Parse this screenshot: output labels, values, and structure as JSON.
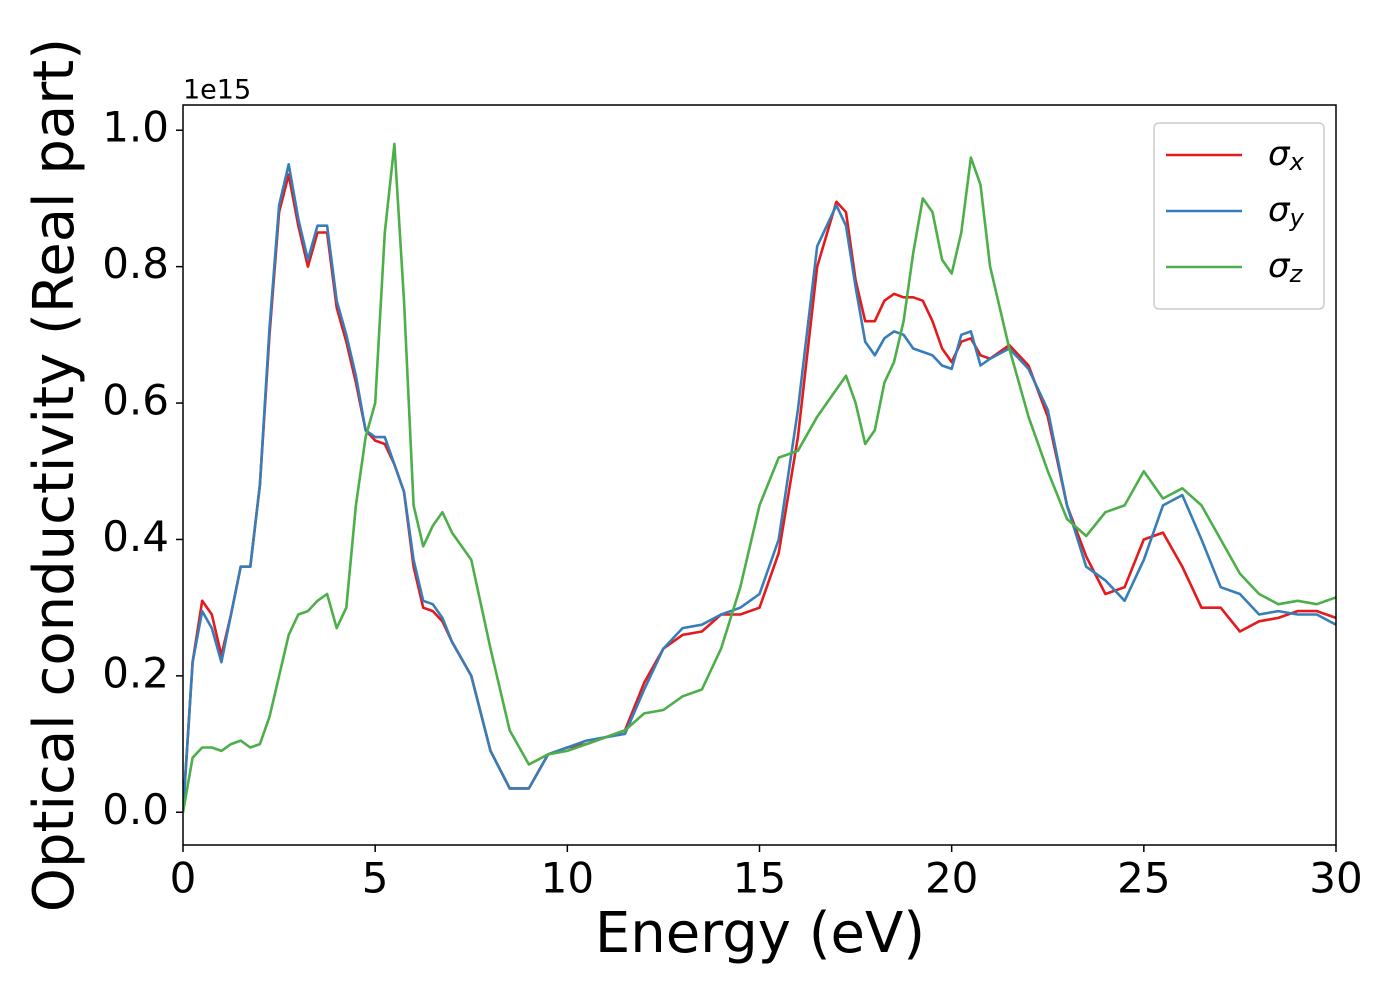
{
  "chart_data": {
    "type": "line",
    "xlabel": "Energy (eV)",
    "ylabel": "Optical conductivity (Real part)",
    "y_offset_label": "1e15",
    "x": [
      0,
      0.25,
      0.5,
      0.75,
      1,
      1.25,
      1.5,
      1.75,
      2,
      2.25,
      2.5,
      2.75,
      3,
      3.25,
      3.5,
      3.75,
      4,
      4.25,
      4.5,
      4.75,
      5,
      5.25,
      5.5,
      5.75,
      6,
      6.25,
      6.5,
      6.75,
      7,
      7.5,
      8,
      8.5,
      9,
      9.5,
      10,
      10.5,
      11,
      11.5,
      12,
      12.5,
      13,
      13.5,
      14,
      14.5,
      15,
      15.5,
      16,
      16.5,
      17,
      17.25,
      17.5,
      17.75,
      18,
      18.25,
      18.5,
      18.75,
      19,
      19.25,
      19.5,
      19.75,
      20,
      20.25,
      20.5,
      20.75,
      21,
      21.5,
      22,
      22.5,
      23,
      23.5,
      24,
      24.5,
      25,
      25.5,
      26,
      26.5,
      27,
      27.5,
      28,
      28.5,
      29,
      29.5,
      30
    ],
    "series": [
      {
        "name": "σx",
        "color": "#e41a1c",
        "values": [
          0,
          0.22,
          0.31,
          0.29,
          0.23,
          0.29,
          0.36,
          0.36,
          0.48,
          0.7,
          0.88,
          0.935,
          0.86,
          0.8,
          0.85,
          0.85,
          0.74,
          0.69,
          0.63,
          0.56,
          0.545,
          0.54,
          0.51,
          0.47,
          0.36,
          0.3,
          0.295,
          0.28,
          0.25,
          0.2,
          0.09,
          0.035,
          0.035,
          0.085,
          0.095,
          0.1,
          0.11,
          0.12,
          0.19,
          0.24,
          0.26,
          0.265,
          0.29,
          0.29,
          0.3,
          0.38,
          0.55,
          0.8,
          0.895,
          0.88,
          0.78,
          0.72,
          0.72,
          0.75,
          0.76,
          0.755,
          0.755,
          0.75,
          0.72,
          0.68,
          0.66,
          0.69,
          0.695,
          0.67,
          0.665,
          0.685,
          0.655,
          0.58,
          0.45,
          0.375,
          0.32,
          0.33,
          0.4,
          0.41,
          0.36,
          0.3,
          0.3,
          0.265,
          0.28,
          0.285,
          0.295,
          0.295,
          0.285
        ]
      },
      {
        "name": "σy",
        "color": "#377eb8",
        "values": [
          0,
          0.22,
          0.295,
          0.27,
          0.22,
          0.29,
          0.36,
          0.36,
          0.48,
          0.71,
          0.89,
          0.95,
          0.87,
          0.81,
          0.86,
          0.86,
          0.75,
          0.7,
          0.64,
          0.56,
          0.55,
          0.55,
          0.51,
          0.47,
          0.37,
          0.31,
          0.305,
          0.285,
          0.25,
          0.2,
          0.09,
          0.035,
          0.035,
          0.085,
          0.095,
          0.105,
          0.11,
          0.115,
          0.18,
          0.24,
          0.27,
          0.275,
          0.29,
          0.3,
          0.32,
          0.4,
          0.59,
          0.83,
          0.89,
          0.86,
          0.77,
          0.69,
          0.67,
          0.695,
          0.705,
          0.7,
          0.68,
          0.675,
          0.67,
          0.655,
          0.65,
          0.7,
          0.705,
          0.655,
          0.665,
          0.68,
          0.65,
          0.59,
          0.45,
          0.36,
          0.34,
          0.31,
          0.37,
          0.45,
          0.465,
          0.4,
          0.33,
          0.32,
          0.29,
          0.295,
          0.29,
          0.29,
          0.275
        ]
      },
      {
        "name": "σz",
        "color": "#4daf4a",
        "values": [
          0,
          0.08,
          0.095,
          0.095,
          0.09,
          0.1,
          0.105,
          0.095,
          0.1,
          0.14,
          0.2,
          0.26,
          0.29,
          0.295,
          0.31,
          0.32,
          0.27,
          0.3,
          0.45,
          0.55,
          0.6,
          0.85,
          0.98,
          0.75,
          0.45,
          0.39,
          0.42,
          0.44,
          0.41,
          0.37,
          0.24,
          0.12,
          0.07,
          0.085,
          0.09,
          0.1,
          0.11,
          0.12,
          0.145,
          0.15,
          0.17,
          0.18,
          0.24,
          0.33,
          0.45,
          0.52,
          0.53,
          0.58,
          0.62,
          0.64,
          0.6,
          0.54,
          0.56,
          0.63,
          0.66,
          0.72,
          0.82,
          0.9,
          0.88,
          0.81,
          0.79,
          0.85,
          0.96,
          0.92,
          0.8,
          0.68,
          0.58,
          0.5,
          0.43,
          0.405,
          0.44,
          0.45,
          0.5,
          0.46,
          0.475,
          0.45,
          0.4,
          0.35,
          0.32,
          0.305,
          0.31,
          0.305,
          0.315
        ]
      }
    ],
    "xlim": [
      0,
      30
    ],
    "xticks": [
      0,
      5,
      10,
      15,
      20,
      25,
      30
    ],
    "ylim": [
      -0.048,
      1.037
    ],
    "yticks": [
      {
        "value": 0,
        "label": "0.0"
      },
      0.2,
      0.4,
      0.6,
      0.8,
      {
        "value": 1,
        "label": "1.0"
      }
    ],
    "legend": "upper right",
    "grid": false
  }
}
